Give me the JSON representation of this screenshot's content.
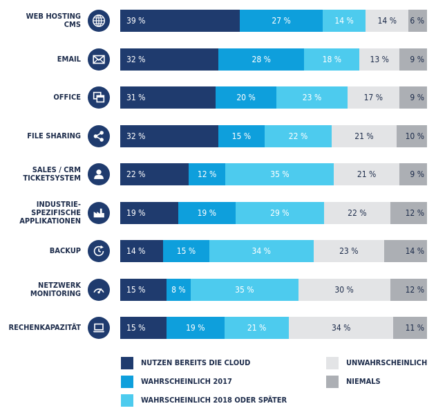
{
  "chart_data": {
    "type": "bar",
    "orientation": "horizontal",
    "stacked": true,
    "unit": "%",
    "categories": [
      "WEB HOSTING\nCMS",
      "EMAIL",
      "OFFICE",
      "FILE SHARING",
      "SALES / CRM\nTICKETSYSTEM",
      "INDUSTRIE-\nSPEZIFISCHE\nAPPLIKATIONEN",
      "BACKUP",
      "NETZWERK\nMONITORING",
      "RECHENKAPAZITÄT"
    ],
    "icons": [
      "globe-icon",
      "envelope-icon",
      "office-windows-icon",
      "share-icon",
      "user-icon",
      "factory-icon",
      "backup-clock-icon",
      "gauge-icon",
      "laptop-icon"
    ],
    "series": [
      {
        "name": "NUTZEN BEREITS DIE CLOUD",
        "color": "#1f3b6e",
        "text_color": "#ffffff",
        "values": [
          39,
          32,
          31,
          32,
          22,
          19,
          14,
          15,
          15
        ]
      },
      {
        "name": "WAHRSCHEINLICH 2017",
        "color": "#0e9fdc",
        "text_color": "#ffffff",
        "values": [
          27,
          28,
          20,
          15,
          12,
          19,
          15,
          8,
          19
        ]
      },
      {
        "name": "WAHRSCHEINLICH 2018 ODER SPÄTER",
        "color": "#4dcbee",
        "text_color": "#ffffff",
        "values": [
          14,
          18,
          23,
          22,
          35,
          29,
          34,
          35,
          21
        ]
      },
      {
        "name": "UNWAHRSCHEINLICH",
        "color": "#e3e4e6",
        "text_color": "#1c2b4a",
        "values": [
          14,
          13,
          17,
          21,
          21,
          22,
          23,
          30,
          34
        ]
      },
      {
        "name": "NIEMALS",
        "color": "#acafb4",
        "text_color": "#1c2b4a",
        "values": [
          6,
          9,
          9,
          10,
          9,
          12,
          14,
          12,
          11
        ]
      }
    ],
    "label_format": "{v} %",
    "legend_position": "bottom",
    "title": "",
    "xlabel": "",
    "ylabel": ""
  }
}
